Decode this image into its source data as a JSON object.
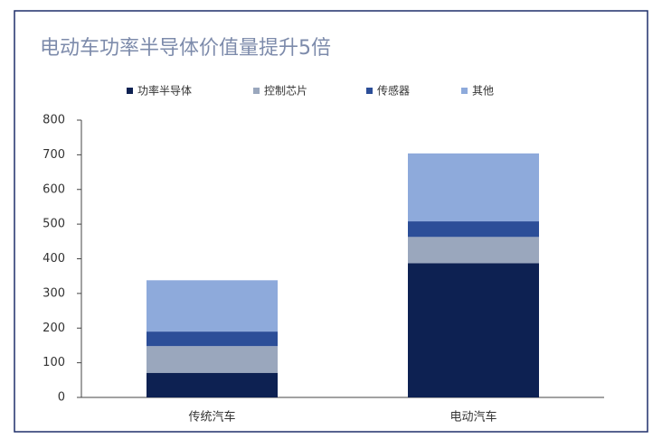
{
  "chart_data": {
    "type": "stacked_bar",
    "title": "电动车功率半导体价值量提升5倍",
    "categories": [
      "传统汽车",
      "电动汽车"
    ],
    "series": [
      {
        "name": "功率半导体",
        "color": "#0d2152",
        "values": [
          71,
          387
        ]
      },
      {
        "name": "控制芯片",
        "color": "#9aa7bd",
        "values": [
          77,
          76
        ]
      },
      {
        "name": "传感器",
        "color": "#2c4e98",
        "values": [
          42,
          45
        ]
      },
      {
        "name": "其他",
        "color": "#8eaadb",
        "values": [
          148,
          196
        ]
      }
    ],
    "ylim": [
      0,
      800
    ],
    "yticks": [
      0,
      100,
      200,
      300,
      400,
      500,
      600,
      700,
      800
    ],
    "grid": false
  }
}
